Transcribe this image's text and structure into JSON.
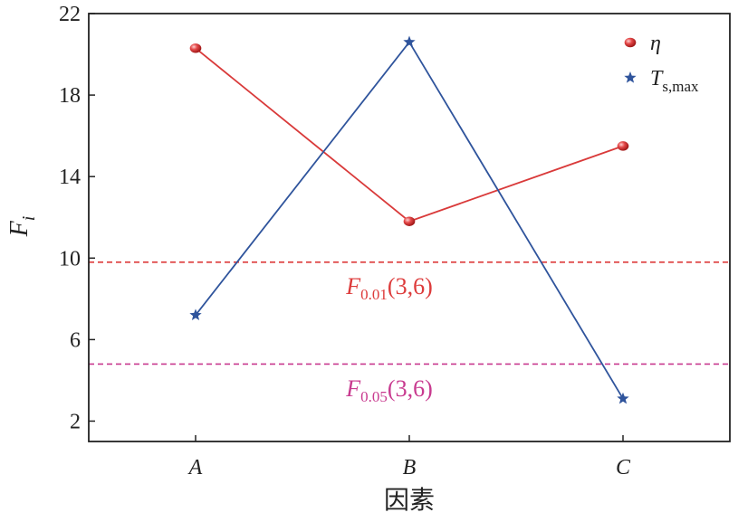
{
  "chart_data": {
    "type": "line",
    "categories": [
      "A",
      "B",
      "C"
    ],
    "xlabel": "因素",
    "ylabel": "F",
    "ylabel_subscript": "i",
    "ylim": [
      1,
      22
    ],
    "yticks": [
      2,
      6,
      10,
      14,
      18,
      22
    ],
    "grid": false,
    "legend_position": "top-right",
    "series": [
      {
        "name": "η",
        "name_sub": "",
        "color": "#d93a3a",
        "marker": "sphere",
        "values": [
          20.3,
          11.8,
          15.5
        ]
      },
      {
        "name": "T",
        "name_sub": "s,max",
        "color": "#2f549c",
        "marker": "star",
        "values": [
          7.2,
          20.6,
          3.1
        ]
      }
    ],
    "reference_lines": [
      {
        "label_main": "F",
        "label_sub": "0.01",
        "label_rest": "(3,6)",
        "value": 9.8,
        "color": "#dd3b3b"
      },
      {
        "label_main": "F",
        "label_sub": "0.05",
        "label_rest": "(3,6)",
        "value": 4.8,
        "color": "#c83a8f"
      }
    ]
  }
}
